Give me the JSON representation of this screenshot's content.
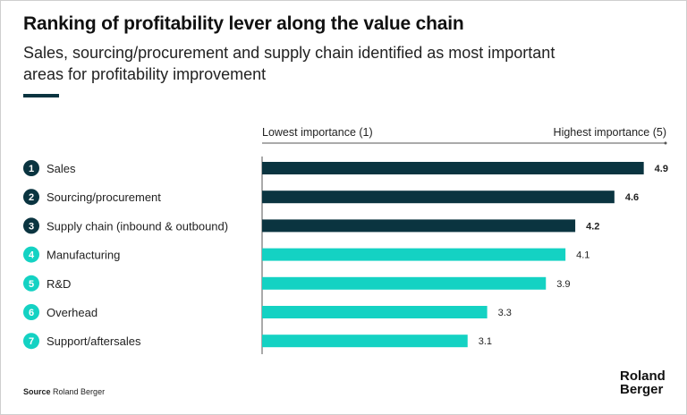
{
  "title": "Ranking of profitability lever along the value chain",
  "subtitle": "Sales, sourcing/procurement and supply chain identified as most important areas for profitability improvement",
  "source_label": "Source",
  "source": "Roland Berger",
  "logo": "Roland Berger",
  "colors": {
    "dark": "#0a3440",
    "light": "#14d2c3"
  },
  "chart_data": {
    "type": "bar",
    "orientation": "horizontal",
    "xlabel_low": "Lowest importance (1)",
    "xlabel_high": "Highest importance (5)",
    "xlim": [
      1,
      5
    ],
    "categories": [
      "Sales",
      "Sourcing/procurement",
      "Supply chain (inbound & outbound)",
      "Manufacturing",
      "R&D",
      "Overhead",
      "Support/aftersales"
    ],
    "ranks": [
      "1",
      "2",
      "3",
      "4",
      "5",
      "6",
      "7"
    ],
    "values": [
      4.9,
      4.6,
      4.2,
      4.1,
      3.9,
      3.3,
      3.1
    ],
    "labels": [
      "4.9",
      "4.6",
      "4.2",
      "4.1",
      "3.9",
      "3.3",
      "3.1"
    ],
    "highlight": [
      true,
      true,
      true,
      false,
      false,
      false,
      false
    ]
  }
}
